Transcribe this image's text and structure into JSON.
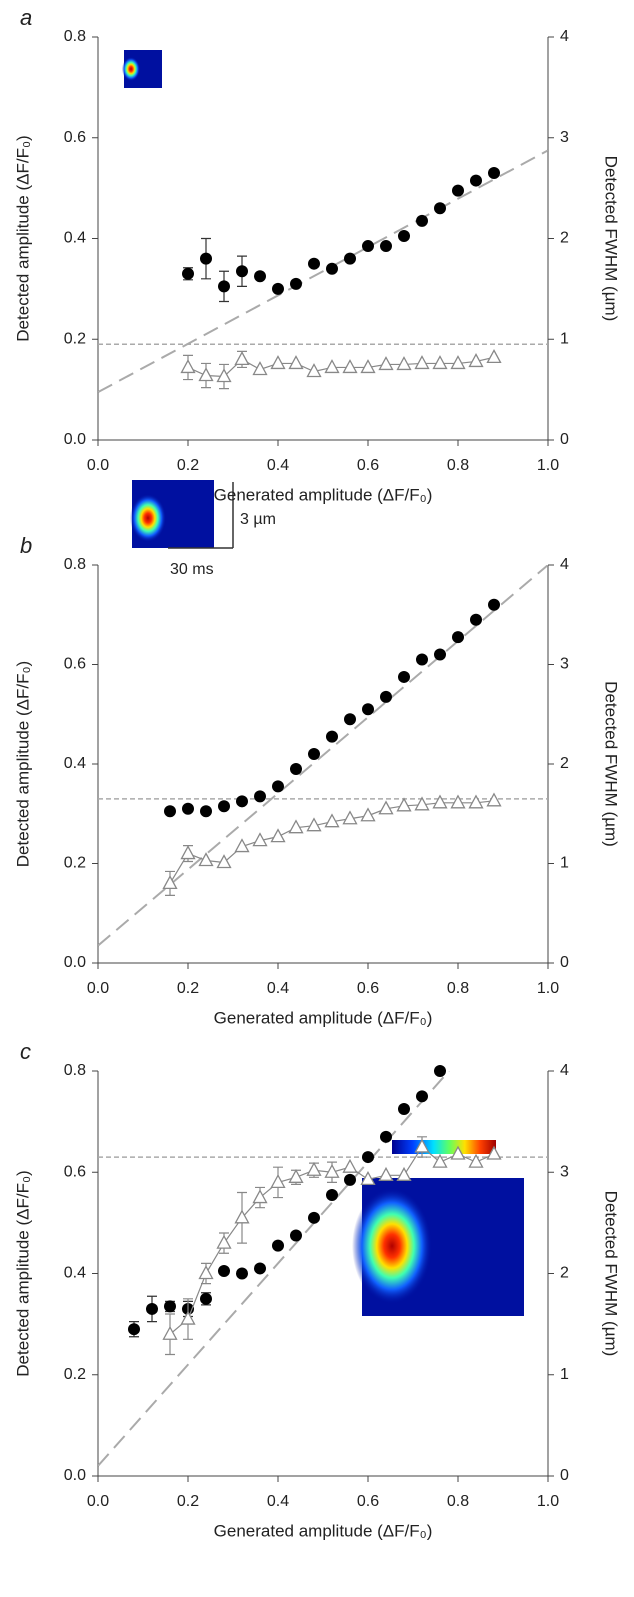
{
  "chart_data": [
    {
      "type": "scatter",
      "panel_label": "a",
      "xlabel": "Generated amplitude (ΔF/F₀)",
      "ylabel": "Detected amplitude (ΔF/F₀)",
      "y2label": "Detected FWHM (µm)",
      "xlim": [
        0,
        1
      ],
      "xticks": [
        {
          "value": 0,
          "label": "0.0"
        },
        0.2,
        0.4,
        0.6,
        0.8,
        {
          "value": 1,
          "label": "1.0"
        }
      ],
      "ylim": [
        0,
        0.8
      ],
      "yticks": [
        {
          "value": 0,
          "label": "0.0"
        },
        0.2,
        0.4,
        0.6,
        0.8
      ],
      "y2lim": [
        0,
        4
      ],
      "y2ticks": [
        0,
        1,
        2,
        3,
        4
      ],
      "series": [
        {
          "marker": "circle",
          "color": "#000000",
          "x": [
            0.2,
            0.24,
            0.28,
            0.32,
            0.36,
            0.4,
            0.44,
            0.48,
            0.52,
            0.56,
            0.6,
            0.64,
            0.68,
            0.72,
            0.76,
            0.8,
            0.84,
            0.88
          ],
          "values": [
            0.33,
            0.36,
            0.305,
            0.335,
            0.325,
            0.3,
            0.31,
            0.35,
            0.34,
            0.36,
            0.385,
            0.385,
            0.405,
            0.435,
            0.46,
            0.495,
            0.515,
            0.53
          ],
          "errors": [
            0.012,
            0.04,
            0.03,
            0.03,
            null,
            null,
            null,
            null,
            null,
            null,
            null,
            null,
            null,
            null,
            null,
            null,
            null,
            null
          ]
        },
        {
          "marker": "triangle",
          "color": "#ffffff",
          "line_color": "#888888",
          "axis": "y2",
          "x": [
            0.2,
            0.24,
            0.28,
            0.32,
            0.36,
            0.4,
            0.44,
            0.48,
            0.52,
            0.56,
            0.6,
            0.64,
            0.68,
            0.72,
            0.76,
            0.8,
            0.84,
            0.88
          ],
          "values": [
            0.72,
            0.64,
            0.63,
            0.8,
            0.7,
            0.76,
            0.76,
            0.68,
            0.72,
            0.72,
            0.72,
            0.75,
            0.75,
            0.76,
            0.76,
            0.76,
            0.78,
            0.82
          ],
          "errors": [
            0.12,
            0.12,
            0.12,
            0.08,
            null,
            null,
            null,
            null,
            null,
            null,
            null,
            null,
            null,
            null,
            null,
            null,
            null,
            null
          ]
        }
      ],
      "hline": 0.19,
      "fit": {
        "x": [
          0,
          1
        ],
        "y": [
          0.095,
          0.575
        ]
      }
    },
    {
      "type": "scatter",
      "panel_label": "b",
      "xlabel": "Generated amplitude (ΔF/F₀)",
      "ylabel": "Detected amplitude (ΔF/F₀)",
      "y2label": "Detected FWHM (µm)",
      "annotations": [
        "3 µm",
        "30 ms"
      ],
      "xlim": [
        0,
        1
      ],
      "xticks": [
        {
          "value": 0,
          "label": "0.0"
        },
        0.2,
        0.4,
        0.6,
        0.8,
        {
          "value": 1,
          "label": "1.0"
        }
      ],
      "ylim": [
        0,
        0.8
      ],
      "yticks": [
        {
          "value": 0,
          "label": "0.0"
        },
        0.2,
        0.4,
        0.6,
        0.8
      ],
      "y2lim": [
        0,
        4
      ],
      "y2ticks": [
        0,
        1,
        2,
        3,
        4
      ],
      "series": [
        {
          "marker": "circle",
          "color": "#000000",
          "x": [
            0.16,
            0.2,
            0.24,
            0.28,
            0.32,
            0.36,
            0.4,
            0.44,
            0.48,
            0.52,
            0.56,
            0.6,
            0.64,
            0.68,
            0.72,
            0.76,
            0.8,
            0.84,
            0.88
          ],
          "values": [
            0.305,
            0.31,
            0.305,
            0.315,
            0.325,
            0.335,
            0.355,
            0.39,
            0.42,
            0.455,
            0.49,
            0.51,
            0.535,
            0.575,
            0.61,
            0.62,
            0.655,
            0.69,
            0.72
          ],
          "errors": [
            null,
            null,
            null,
            null,
            null,
            null,
            null,
            null,
            null,
            null,
            null,
            null,
            null,
            null,
            null,
            null,
            null,
            null,
            null
          ]
        },
        {
          "marker": "triangle",
          "color": "#ffffff",
          "line_color": "#888888",
          "axis": "y2",
          "x": [
            0.16,
            0.2,
            0.24,
            0.28,
            0.32,
            0.36,
            0.4,
            0.44,
            0.48,
            0.52,
            0.56,
            0.6,
            0.64,
            0.68,
            0.72,
            0.76,
            0.8,
            0.84,
            0.88
          ],
          "values": [
            0.8,
            1.1,
            1.03,
            1.01,
            1.17,
            1.23,
            1.27,
            1.36,
            1.38,
            1.42,
            1.45,
            1.48,
            1.55,
            1.58,
            1.59,
            1.61,
            1.61,
            1.61,
            1.63
          ],
          "errors": [
            0.12,
            0.08,
            null,
            null,
            null,
            null,
            null,
            null,
            null,
            null,
            null,
            null,
            null,
            null,
            null,
            null,
            null,
            null,
            null
          ]
        }
      ],
      "hline": 0.33,
      "fit": {
        "x": [
          0,
          1
        ],
        "y": [
          0.035,
          0.8
        ]
      }
    },
    {
      "type": "scatter",
      "panel_label": "c",
      "xlabel": "Generated amplitude (ΔF/F₀)",
      "ylabel": "Detected amplitude (ΔF/F₀)",
      "y2label": "Detected FWHM (µm)",
      "xlim": [
        0,
        1
      ],
      "xticks": [
        {
          "value": 0,
          "label": "0.0"
        },
        0.2,
        0.4,
        0.6,
        0.8,
        {
          "value": 1,
          "label": "1.0"
        }
      ],
      "ylim": [
        0,
        0.8
      ],
      "yticks": [
        {
          "value": 0,
          "label": "0.0"
        },
        0.2,
        0.4,
        0.6,
        0.8
      ],
      "y2lim": [
        0,
        4
      ],
      "y2ticks": [
        0,
        1,
        2,
        3,
        4
      ],
      "series": [
        {
          "marker": "circle",
          "color": "#000000",
          "x": [
            0.08,
            0.12,
            0.16,
            0.2,
            0.24,
            0.28,
            0.32,
            0.36,
            0.4,
            0.44,
            0.48,
            0.52,
            0.56,
            0.6,
            0.64,
            0.68,
            0.72,
            0.76
          ],
          "values": [
            0.29,
            0.33,
            0.335,
            0.33,
            0.35,
            0.405,
            0.4,
            0.41,
            0.455,
            0.475,
            0.51,
            0.555,
            0.585,
            0.63,
            0.67,
            0.725,
            0.75,
            0.8
          ],
          "errors": [
            0.015,
            0.025,
            0.01,
            0.015,
            0.012,
            null,
            null,
            null,
            null,
            null,
            null,
            null,
            null,
            null,
            null,
            null,
            null,
            null
          ]
        },
        {
          "marker": "triangle",
          "color": "#ffffff",
          "line_color": "#888888",
          "axis": "y2",
          "x": [
            0.16,
            0.2,
            0.24,
            0.28,
            0.32,
            0.36,
            0.4,
            0.44,
            0.48,
            0.52,
            0.56,
            0.6,
            0.64,
            0.68,
            0.72,
            0.76,
            0.8,
            0.84,
            0.88
          ],
          "values": [
            1.4,
            1.55,
            2.0,
            2.3,
            2.55,
            2.75,
            2.9,
            2.95,
            3.02,
            3.0,
            3.05,
            2.93,
            2.97,
            2.97,
            3.25,
            3.1,
            3.18,
            3.1,
            3.18
          ],
          "errors": [
            0.2,
            0.2,
            0.1,
            0.1,
            0.25,
            0.1,
            0.15,
            0.07,
            0.07,
            0.1,
            null,
            null,
            null,
            null,
            0.1,
            null,
            null,
            null,
            null
          ]
        }
      ],
      "hline": 0.63,
      "fit": {
        "x": [
          0,
          0.78
        ],
        "y": [
          0.02,
          0.8
        ]
      }
    }
  ]
}
